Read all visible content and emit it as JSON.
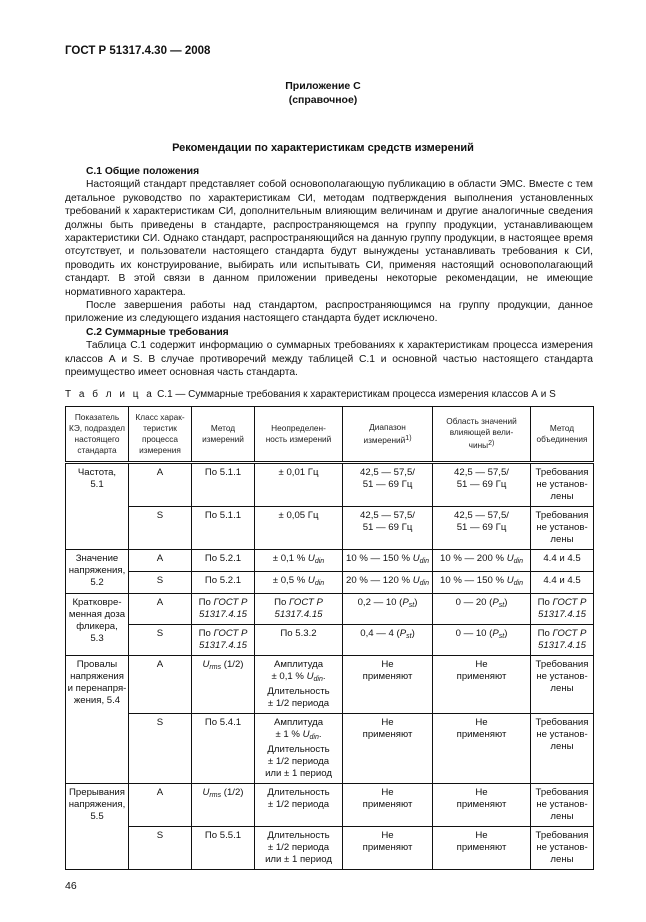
{
  "header": "ГОСТ Р 51317.4.30 — 2008",
  "appendix": {
    "title": "Приложение С",
    "subtitle": "(справочное)"
  },
  "heading": "Рекомендации по характеристикам средств измерений",
  "section1": {
    "title": "С.1 Общие положения",
    "p1": "Настоящий стандарт представляет собой основополагающую публикацию в области ЭМС. Вместе с тем детальное руководство по характеристикам СИ, методам подтверждения выполнения установленных требований к характеристикам СИ, дополнительным влияющим величинам и другие аналогичные сведения должны быть приведены в стандарте, распространяющемся на группу продукции, устанавливающем характеристики СИ. Однако стандарт, распространяющийся на данную группу продукции, в настоящее время отсутствует, и пользователи настоящего стандарта будут вынуждены устанавливать требования к СИ, проводить их конструирование, выбирать или испытывать СИ, применяя настоящий основополагающий стандарт. В этой связи в данном приложении приведены некоторые рекомендации, не имеющие нормативного характера.",
    "p2": "После завершения работы над стандартом, распространяющимся на группу продукции, данное приложение из следующего издания настоящего стандарта будет исключено."
  },
  "section2": {
    "title": "С.2 Суммарные требования",
    "p1": "Таблица С.1 содержит информацию о суммарных требованиях к характеристикам процесса измерения классов А и S. В случае противоречий между таблицей С.1 и основной частью настоящего стандарта преимущество имеет основная часть стандарта."
  },
  "table": {
    "caption_label": "Т а б л и ц а",
    "caption_text": "С.1 — Суммарные требования к характеристикам процесса измерения классов А и S",
    "headers": [
      [
        [
          "Показатель\nКЭ, подраздел\nнастоящего\nстандарта",
          ""
        ]
      ],
      [
        [
          "Класс харак-\nтеристик\nпроцесса\nизмерения",
          ""
        ]
      ],
      [
        [
          "Метод\nизмерений",
          ""
        ]
      ],
      [
        [
          "Неопределен-\nность измерений",
          ""
        ]
      ],
      [
        [
          "Диапазон\nизмерений",
          ""
        ],
        [
          "1)",
          "s"
        ]
      ],
      [
        [
          "Область значений\nвлияющей вели-\nчины",
          ""
        ],
        [
          "2)",
          "s"
        ]
      ],
      [
        [
          "Метод\nобъединения",
          ""
        ]
      ]
    ],
    "groups": [
      {
        "indicator": "Частота,\n5.1",
        "rows": [
          [
            [
              [
                "А",
                ""
              ]
            ],
            [
              [
                "По 5.1.1",
                ""
              ]
            ],
            [
              [
                "± 0,01 Гц",
                ""
              ]
            ],
            [
              [
                "42,5 — 57,5/\n51 — 69 Гц",
                ""
              ]
            ],
            [
              [
                "42,5 — 57,5/\n51 — 69 Гц",
                ""
              ]
            ],
            [
              [
                "Требования\nне установ-\nлены",
                ""
              ]
            ]
          ],
          [
            [
              [
                "S",
                ""
              ]
            ],
            [
              [
                "По 5.1.1",
                ""
              ]
            ],
            [
              [
                "± 0,05 Гц",
                ""
              ]
            ],
            [
              [
                "42,5 — 57,5/\n51 — 69 Гц",
                ""
              ]
            ],
            [
              [
                "42,5 — 57,5/\n51 — 69 Гц",
                ""
              ]
            ],
            [
              [
                "Требования\nне установ-\nлены",
                ""
              ]
            ]
          ]
        ]
      },
      {
        "indicator": "Значение\nнапряжения,\n5.2",
        "rows": [
          [
            [
              [
                "А",
                ""
              ]
            ],
            [
              [
                "По 5.2.1",
                ""
              ]
            ],
            [
              [
                "± 0,1 % ",
                ""
              ],
              [
                "U",
                "i"
              ],
              [
                "din",
                "si"
              ]
            ],
            [
              [
                "10 % — 150 % ",
                ""
              ],
              [
                "U",
                "i"
              ],
              [
                "din",
                "si"
              ]
            ],
            [
              [
                "10 % — 200 % ",
                ""
              ],
              [
                "U",
                "i"
              ],
              [
                "din",
                "si"
              ]
            ],
            [
              [
                "4.4 и 4.5",
                ""
              ]
            ]
          ],
          [
            [
              [
                "S",
                ""
              ]
            ],
            [
              [
                "По 5.2.1",
                ""
              ]
            ],
            [
              [
                "± 0,5 % ",
                ""
              ],
              [
                "U",
                "i"
              ],
              [
                "din",
                "si"
              ]
            ],
            [
              [
                "20 % — 120 % ",
                ""
              ],
              [
                "U",
                "i"
              ],
              [
                "din",
                "si"
              ]
            ],
            [
              [
                "10 % — 150 % ",
                ""
              ],
              [
                "U",
                "i"
              ],
              [
                "din",
                "si"
              ]
            ],
            [
              [
                "4.4 и 4.5",
                ""
              ]
            ]
          ]
        ]
      },
      {
        "indicator": "Кратковре-\nменная доза\nфликера,\n5.3",
        "rows": [
          [
            [
              [
                "А",
                ""
              ]
            ],
            [
              [
                "По ",
                ""
              ],
              [
                "ГОСТ Р\n51317.4.15",
                "i"
              ]
            ],
            [
              [
                "По ",
                ""
              ],
              [
                "ГОСТ Р\n51317.4.15",
                "i"
              ]
            ],
            [
              [
                "0,2 — 10 (",
                ""
              ],
              [
                "P",
                "i"
              ],
              [
                "st",
                "si"
              ],
              [
                ")",
                ""
              ]
            ],
            [
              [
                "0 — 20 (",
                ""
              ],
              [
                "P",
                "i"
              ],
              [
                "st",
                "si"
              ],
              [
                ")",
                ""
              ]
            ],
            [
              [
                "По ",
                ""
              ],
              [
                "ГОСТ Р\n51317.4.15",
                "i"
              ]
            ]
          ],
          [
            [
              [
                "S",
                ""
              ]
            ],
            [
              [
                "По ",
                ""
              ],
              [
                "ГОСТ Р\n51317.4.15",
                "i"
              ]
            ],
            [
              [
                "По 5.3.2",
                ""
              ]
            ],
            [
              [
                "0,4 — 4 (",
                ""
              ],
              [
                "P",
                "i"
              ],
              [
                "st",
                "si"
              ],
              [
                ")",
                ""
              ]
            ],
            [
              [
                "0 — 10 (",
                ""
              ],
              [
                "P",
                "i"
              ],
              [
                "st",
                "si"
              ],
              [
                ")",
                ""
              ]
            ],
            [
              [
                "По ",
                ""
              ],
              [
                "ГОСТ Р\n51317.4.15",
                "i"
              ]
            ]
          ]
        ]
      },
      {
        "indicator": "Провалы\nнапряжения\nи перенапря-\nжения, 5.4",
        "rows": [
          [
            [
              [
                "А",
                ""
              ]
            ],
            [
              [
                "U",
                "i"
              ],
              [
                "rms",
                "si"
              ],
              [
                " (1/2)",
                ""
              ]
            ],
            [
              [
                "Амплитуда\n± 0,1 % ",
                ""
              ],
              [
                "U",
                "i"
              ],
              [
                "din",
                "si"
              ],
              [
                ".\nДлительность\n± 1/2 периода",
                ""
              ]
            ],
            [
              [
                "Не\nприменяют",
                ""
              ]
            ],
            [
              [
                "Не\nприменяют",
                ""
              ]
            ],
            [
              [
                "Требования\nне установ-\nлены",
                ""
              ]
            ]
          ],
          [
            [
              [
                "S",
                ""
              ]
            ],
            [
              [
                "По 5.4.1",
                ""
              ]
            ],
            [
              [
                "Амплитуда\n± 1 % ",
                ""
              ],
              [
                "U",
                "i"
              ],
              [
                "din",
                "si"
              ],
              [
                ".\nДлительность\n± 1/2 периода\nили ± 1 период",
                ""
              ]
            ],
            [
              [
                "Не\nприменяют",
                ""
              ]
            ],
            [
              [
                "Не\nприменяют",
                ""
              ]
            ],
            [
              [
                "Требования\nне установ-\nлены",
                ""
              ]
            ]
          ]
        ]
      },
      {
        "indicator": "Прерывания\nнапряжения,\n5.5",
        "rows": [
          [
            [
              [
                "А",
                ""
              ]
            ],
            [
              [
                "U",
                "i"
              ],
              [
                "rms",
                "si"
              ],
              [
                " (1/2)",
                ""
              ]
            ],
            [
              [
                "Длительность\n± 1/2 периода",
                ""
              ]
            ],
            [
              [
                "Не\nприменяют",
                ""
              ]
            ],
            [
              [
                "Не\nприменяют",
                ""
              ]
            ],
            [
              [
                "Требования\nне установ-\nлены",
                ""
              ]
            ]
          ],
          [
            [
              [
                "S",
                ""
              ]
            ],
            [
              [
                "По 5.5.1",
                ""
              ]
            ],
            [
              [
                "Длительность\n± 1/2 периода\nили ± 1 период",
                ""
              ]
            ],
            [
              [
                "Не\nприменяют",
                ""
              ]
            ],
            [
              [
                "Не\nприменяют",
                ""
              ]
            ],
            [
              [
                "Требования\nне установ-\nлены",
                ""
              ]
            ]
          ]
        ]
      }
    ]
  },
  "page_number": "46"
}
